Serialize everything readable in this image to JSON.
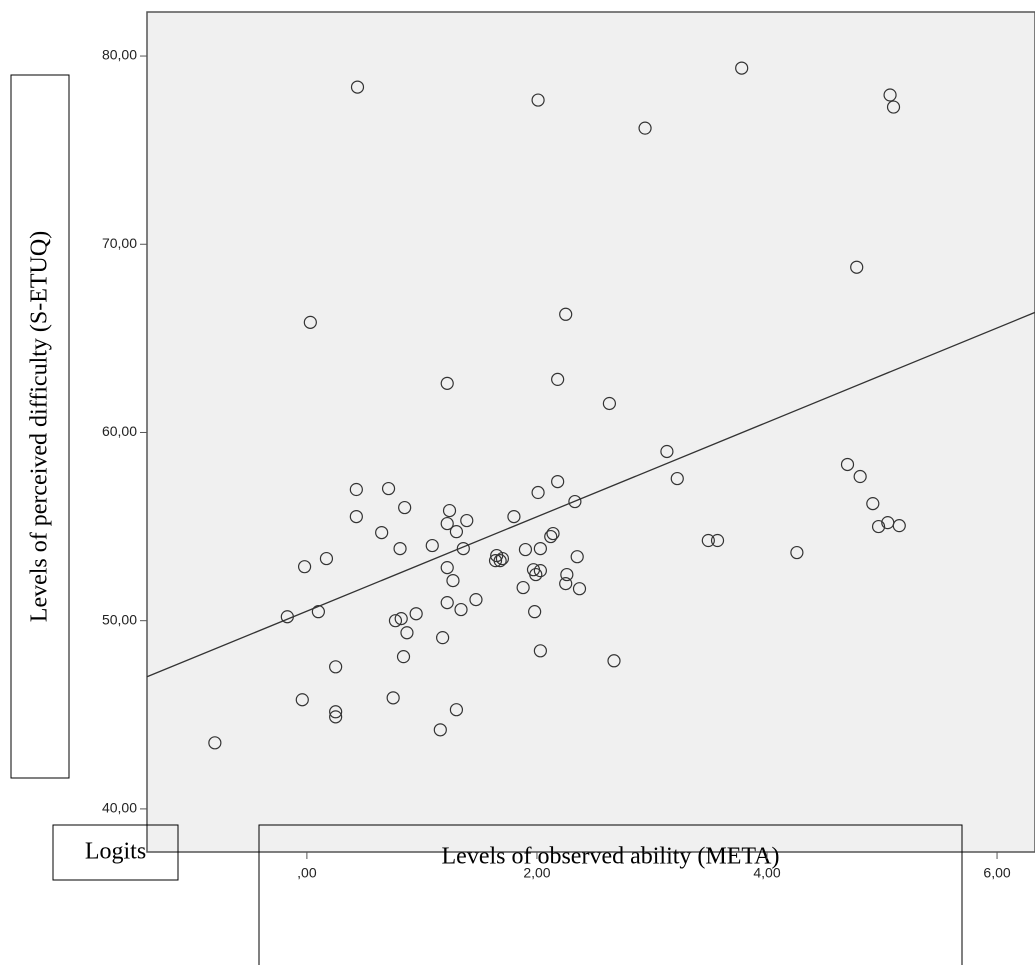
{
  "chart_data": {
    "type": "scatter",
    "x_label": "Levels of observed ability (META)",
    "y_label": "Levels of perceived difficulty (S-ETUQ)",
    "annotation": "Logits",
    "color": "#333333",
    "background": "#f0f0f0",
    "xlim": [
      -1.39,
      6.33
    ],
    "ylim": [
      37.71,
      82.34
    ],
    "xticks": [
      {
        "value": 0,
        "label": ",00"
      },
      {
        "value": 2,
        "label": "2,00"
      },
      {
        "value": 4,
        "label": "4,00"
      },
      {
        "value": 6,
        "label": "6,00"
      }
    ],
    "yticks": [
      {
        "value": 40,
        "label": "40,00"
      },
      {
        "value": 50,
        "label": "50,00"
      },
      {
        "value": 60,
        "label": "60,00"
      },
      {
        "value": 70,
        "label": "70,00"
      },
      {
        "value": 80,
        "label": "80,00"
      }
    ],
    "fit_line": {
      "x": [
        -1.39,
        6.33
      ],
      "y": [
        47.02,
        66.38
      ]
    },
    "x": [
      -0.8,
      0.44,
      2.01,
      2.94,
      3.78,
      5.07,
      5.1,
      4.78,
      0.03,
      2.25,
      1.22,
      2.18,
      2.63,
      3.13,
      3.22,
      3.49,
      3.57,
      4.7,
      4.81,
      4.92,
      4.97,
      5.05,
      5.15,
      4.26,
      0.43,
      0.71,
      0.43,
      0.85,
      0.65,
      0.81,
      0.17,
      -0.02,
      -0.17,
      0.1,
      0.77,
      0.82,
      0.95,
      0.87,
      0.84,
      0.25,
      -0.04,
      0.25,
      0.25,
      0.75,
      1.16,
      1.3,
      1.18,
      1.22,
      1.34,
      1.47,
      1.09,
      1.22,
      1.27,
      1.22,
      1.24,
      1.3,
      1.36,
      1.39,
      1.8,
      2.01,
      2.18,
      2.33,
      1.65,
      1.68,
      1.7,
      1.64,
      1.9,
      2.12,
      2.14,
      2.03,
      2.35,
      1.88,
      1.97,
      2.03,
      1.99,
      2.26,
      2.25,
      2.37,
      1.98,
      2.03,
      2.67
    ],
    "values": [
      43.51,
      78.35,
      77.66,
      76.17,
      79.36,
      77.93,
      77.29,
      68.78,
      65.85,
      66.28,
      62.61,
      62.82,
      61.54,
      58.99,
      57.55,
      54.26,
      54.26,
      58.3,
      57.66,
      56.22,
      55.0,
      55.21,
      55.05,
      53.62,
      56.97,
      57.02,
      55.53,
      56.01,
      54.68,
      53.83,
      53.3,
      52.87,
      50.21,
      50.48,
      50.0,
      50.11,
      50.37,
      49.36,
      48.09,
      47.55,
      45.8,
      45.16,
      44.89,
      45.9,
      44.2,
      45.27,
      49.1,
      50.96,
      50.59,
      51.12,
      53.99,
      52.82,
      52.13,
      55.16,
      55.85,
      54.73,
      53.83,
      55.32,
      55.53,
      56.81,
      57.39,
      56.33,
      53.46,
      53.19,
      53.3,
      53.19,
      53.78,
      54.47,
      54.63,
      53.83,
      53.4,
      51.76,
      52.71,
      52.66,
      52.45,
      52.45,
      51.97,
      51.7,
      50.48,
      48.4,
      47.87
    ]
  }
}
